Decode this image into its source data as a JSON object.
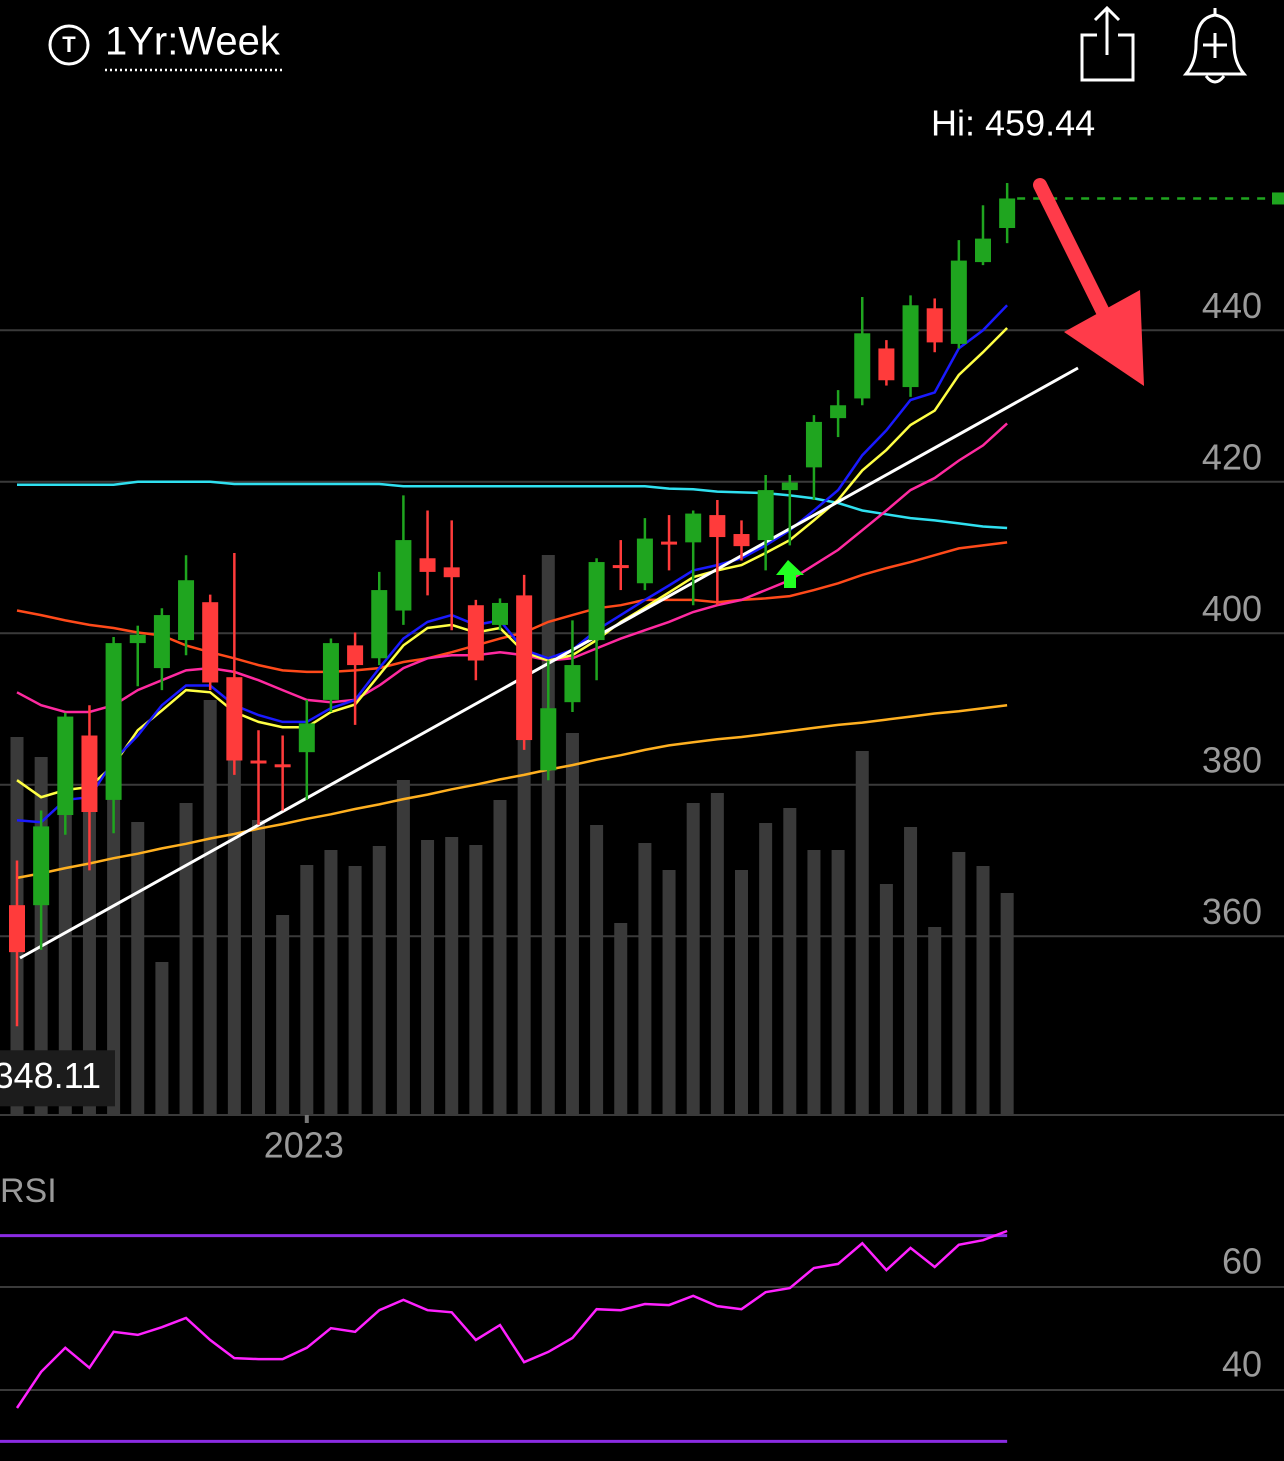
{
  "chart_data": {
    "type": "candlestick",
    "title": "1Yr:Week",
    "hi_label": "Hi: 459.44",
    "lo_label": "348.11",
    "categories": [
      null,
      null,
      null,
      null,
      null,
      null,
      null,
      null,
      null,
      null,
      null,
      null,
      "2023",
      null,
      null,
      null,
      null,
      null,
      null,
      null,
      null,
      null,
      null,
      null,
      null,
      null,
      null,
      null,
      null,
      null,
      null,
      null,
      null,
      null,
      null,
      null,
      null,
      null,
      null,
      null,
      null,
      null
    ],
    "open": [
      364.1,
      364.1,
      376.0,
      386.5,
      378.0,
      398.7,
      395.4,
      399.1,
      404.1,
      394.2,
      383.2,
      382.7,
      384.3,
      391.2,
      398.4,
      396.7,
      403.0,
      409.9,
      408.7,
      403.7,
      401.1,
      405.0,
      381.9,
      390.9,
      399.1,
      409.0,
      406.6,
      412.1,
      412.0,
      415.6,
      413.1,
      412.3,
      418.9,
      421.9,
      428.4,
      431.0,
      437.6,
      432.5,
      442.9,
      438.2,
      449.0,
      453.5
    ],
    "high": [
      370.0,
      376.6,
      389.5,
      390.5,
      399.5,
      401.0,
      403.3,
      410.3,
      405.1,
      410.6,
      387.2,
      386.5,
      391.2,
      399.3,
      400.1,
      408.1,
      418.2,
      416.2,
      414.9,
      404.4,
      404.6,
      407.7,
      396.4,
      401.7,
      409.9,
      412.3,
      415.2,
      415.6,
      416.2,
      417.6,
      414.9,
      420.9,
      420.9,
      428.8,
      432.1,
      444.4,
      438.7,
      444.6,
      444.2,
      451.9,
      456.5,
      459.44
    ],
    "low": [
      348.11,
      358.2,
      373.4,
      368.7,
      373.6,
      393.0,
      392.5,
      397.1,
      392.5,
      381.3,
      374.7,
      376.6,
      378.0,
      389.6,
      387.9,
      395.8,
      401.1,
      405.0,
      400.4,
      393.8,
      400.4,
      384.6,
      380.6,
      389.6,
      393.8,
      405.7,
      405.7,
      408.3,
      403.7,
      403.7,
      409.6,
      408.3,
      411.6,
      417.6,
      425.9,
      430.1,
      432.7,
      431.2,
      437.1,
      437.6,
      448.6,
      451.5
    ],
    "close": [
      357.9,
      374.5,
      389.0,
      376.4,
      398.7,
      399.8,
      402.4,
      407.0,
      393.5,
      383.2,
      383.0,
      382.5,
      388.1,
      398.7,
      395.8,
      405.7,
      412.3,
      408.1,
      407.4,
      396.4,
      404.0,
      385.9,
      390.1,
      395.8,
      409.4,
      408.9,
      412.5,
      412.0,
      415.8,
      412.7,
      411.5,
      418.9,
      419.9,
      427.9,
      430.1,
      439.6,
      433.4,
      443.3,
      438.4,
      449.2,
      452.1,
      457.4
    ],
    "up_color": "#1fa51f",
    "down_color": "#ff3b3b",
    "ylim": [
      336.4,
      470.4
    ],
    "yticks": [
      360,
      380,
      400,
      420,
      440
    ],
    "grid": true,
    "overlays": [
      {
        "color": "#ffb020",
        "values": [
          367.7,
          368.3,
          369.0,
          369.6,
          370.3,
          370.9,
          371.6,
          372.2,
          372.9,
          373.5,
          374.2,
          374.8,
          375.5,
          376.1,
          376.8,
          377.4,
          378.1,
          378.7,
          379.4,
          380.0,
          380.7,
          381.3,
          382.0,
          382.6,
          383.3,
          383.9,
          384.6,
          385.2,
          385.6,
          386.0,
          386.3,
          386.7,
          387.1,
          387.5,
          387.9,
          388.2,
          388.6,
          389.0,
          389.4,
          389.7,
          390.1,
          390.5
        ]
      },
      {
        "color": "#30e0f0",
        "values": [
          419.6,
          419.6,
          419.6,
          419.6,
          419.6,
          420.0,
          420.0,
          420.0,
          420.0,
          419.7,
          419.7,
          419.7,
          419.7,
          419.7,
          419.7,
          419.7,
          419.4,
          419.4,
          419.4,
          419.4,
          419.4,
          419.4,
          419.4,
          419.4,
          419.4,
          419.4,
          419.4,
          419.1,
          419.0,
          418.7,
          418.6,
          418.5,
          418.2,
          417.8,
          417.2,
          416.2,
          415.7,
          415.2,
          414.9,
          414.5,
          414.1,
          413.9
        ]
      },
      {
        "color": "#ff4a1a",
        "values": [
          403.0,
          402.4,
          401.7,
          401.1,
          400.7,
          400.1,
          399.7,
          398.4,
          397.5,
          396.7,
          395.8,
          395.1,
          394.9,
          394.9,
          395.1,
          395.4,
          396.2,
          396.7,
          397.5,
          398.4,
          399.3,
          400.1,
          401.5,
          402.4,
          403.3,
          403.7,
          404.4,
          404.4,
          404.4,
          404.1,
          404.4,
          404.6,
          404.9,
          405.7,
          406.6,
          407.7,
          408.6,
          409.4,
          410.3,
          411.2,
          411.6,
          412.0
        ]
      },
      {
        "color": "#ff2aa0",
        "values": [
          392.2,
          390.5,
          389.6,
          389.6,
          390.5,
          392.5,
          393.8,
          395.1,
          395.4,
          394.9,
          393.8,
          392.5,
          391.2,
          390.9,
          391.2,
          393.1,
          395.4,
          396.7,
          397.1,
          397.1,
          397.5,
          397.1,
          396.4,
          396.7,
          398.0,
          399.3,
          400.4,
          401.5,
          402.8,
          403.7,
          404.4,
          405.7,
          407.0,
          409.0,
          411.0,
          413.6,
          416.2,
          418.9,
          420.5,
          422.8,
          424.8,
          427.7
        ]
      },
      {
        "color": "#ffff44",
        "values": [
          380.6,
          378.35,
          379.3,
          379.7,
          382.6,
          387.2,
          389.8,
          392.5,
          392.2,
          389.6,
          388.3,
          387.6,
          387.6,
          389.6,
          390.6,
          394.5,
          398.4,
          400.7,
          401.1,
          400.1,
          400.7,
          397.5,
          396.4,
          397.1,
          399.1,
          401.5,
          403.4,
          405.4,
          407.4,
          408.3,
          409.0,
          410.6,
          412.3,
          414.9,
          417.6,
          421.5,
          424.2,
          427.5,
          429.4,
          434.1,
          437.1,
          440.3
        ]
      },
      {
        "color": "#1a1aff",
        "values": [
          375.3,
          375.05,
          378.0,
          378.35,
          383.2,
          386.5,
          390.5,
          393.1,
          393.1,
          390.5,
          389.2,
          388.3,
          388.3,
          390.1,
          391.2,
          395.4,
          399.3,
          401.5,
          402.4,
          401.1,
          401.7,
          397.8,
          396.7,
          397.8,
          400.4,
          402.4,
          404.4,
          406.3,
          408.3,
          409.0,
          409.9,
          411.6,
          413.6,
          416.2,
          418.9,
          423.5,
          426.8,
          430.8,
          431.8,
          437.6,
          440.0,
          443.3
        ]
      }
    ],
    "volume": {
      "color": "#3a3a3a",
      "ylim": [
        0,
        60
      ],
      "values": [
        37.8,
        35.8,
        35.0,
        37.5,
        41.5,
        29.3,
        15.3,
        31.2,
        41.5,
        39.5,
        29.5,
        20.0,
        25.0,
        26.5,
        24.9,
        26.9,
        33.5,
        27.5,
        27.8,
        27.0,
        31.5,
        37.5,
        56.0,
        38.2,
        29.0,
        19.2,
        27.2,
        24.5,
        31.2,
        32.2,
        24.5,
        29.2,
        30.7,
        26.5,
        26.5,
        36.4,
        23.1,
        28.8,
        18.8,
        26.3,
        24.9,
        22.2
      ]
    },
    "rsi": {
      "label": "RSI",
      "color": "#ff22ff",
      "band_color": "#8a2be2",
      "ylim": [
        26,
        74
      ],
      "yticks": [
        40,
        60
      ],
      "bands": [
        70,
        30
      ],
      "values": [
        36.5,
        43.5,
        48.2,
        44.3,
        51.3,
        50.7,
        52.2,
        54.0,
        49.7,
        46.2,
        46.0,
        46.0,
        48.2,
        52.0,
        51.3,
        55.5,
        57.5,
        55.5,
        55.1,
        49.7,
        52.6,
        45.4,
        47.4,
        50.1,
        55.7,
        55.5,
        56.7,
        56.5,
        58.3,
        56.3,
        55.7,
        59.0,
        59.8,
        63.7,
        64.5,
        68.5,
        63.3,
        67.6,
        63.9,
        68.2,
        69.1,
        70.9
      ]
    }
  }
}
